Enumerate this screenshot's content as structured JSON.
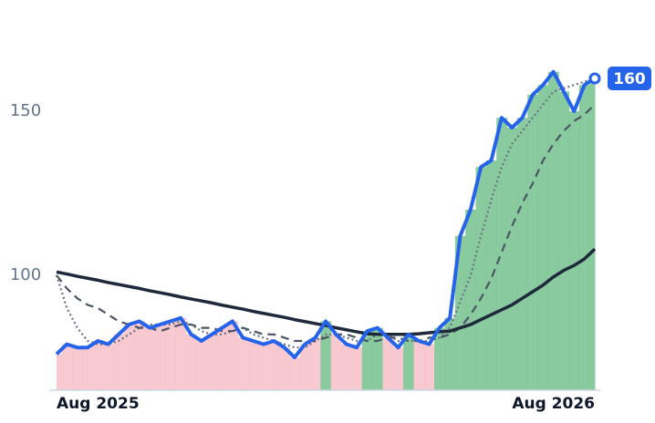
{
  "chart_data": {
    "type": "line",
    "categories": [
      "Aug 2025",
      null,
      null,
      null,
      null,
      null,
      null,
      null,
      null,
      null,
      null,
      null,
      null,
      null,
      null,
      null,
      null,
      null,
      null,
      null,
      null,
      null,
      null,
      null,
      null,
      null,
      null,
      null,
      null,
      null,
      null,
      null,
      null,
      null,
      null,
      null,
      null,
      null,
      null,
      null,
      null,
      null,
      null,
      null,
      null,
      null,
      null,
      null,
      null,
      null,
      null,
      null,
      "Aug 2026"
    ],
    "series": [
      {
        "color": "#2563eb",
        "values": [
          76,
          79,
          78,
          78,
          80,
          79,
          82,
          85,
          86,
          84,
          85,
          86,
          87,
          82,
          80,
          82,
          84,
          86,
          81,
          80,
          79,
          80,
          78,
          75,
          79,
          81,
          86,
          82,
          79,
          78,
          83,
          84,
          81,
          78,
          82,
          80,
          79,
          84,
          87,
          112,
          120,
          133,
          135,
          148,
          145,
          148,
          155,
          158,
          162,
          156,
          150,
          158,
          160
        ]
      },
      {
        "color": "#1e293b",
        "values": [
          101,
          100.4,
          99.7,
          99.1,
          98.5,
          97.8,
          97.2,
          96.6,
          96,
          95.3,
          94.7,
          94.1,
          93.4,
          92.8,
          92.2,
          91.6,
          90.9,
          90.3,
          89.7,
          89,
          88.4,
          87.8,
          87.2,
          86.5,
          85.9,
          85.3,
          84.7,
          84,
          83.4,
          82.8,
          82.2,
          82,
          82,
          82,
          82,
          82.2,
          82.5,
          82.8,
          83,
          84,
          85,
          86.5,
          88,
          89.5,
          91,
          93,
          95,
          97,
          99.5,
          101.5,
          103,
          105,
          108
        ]
      },
      {
        "color": "#4b5563",
        "dash": "9 6",
        "values": [
          100,
          96,
          93,
          91,
          90,
          88,
          86,
          85,
          84,
          84,
          83,
          84,
          85,
          85,
          84,
          84,
          83,
          83,
          84,
          83,
          82,
          82,
          81,
          80,
          80,
          80,
          81,
          82,
          82,
          81,
          80,
          80,
          81,
          81,
          80,
          80,
          81,
          81,
          82,
          84,
          88,
          93,
          99,
          107,
          115,
          122,
          128,
          135,
          140,
          144,
          147,
          149,
          152
        ]
      },
      {
        "color": "#6b7280",
        "dash": "2 3",
        "values": [
          100,
          90,
          84,
          80,
          79,
          79,
          80,
          82,
          84,
          85,
          85,
          85,
          86,
          85,
          83,
          82,
          82,
          83,
          84,
          82,
          81,
          80,
          79,
          78,
          78,
          80,
          82,
          82,
          81,
          80,
          80,
          82,
          82,
          80,
          80,
          80,
          80,
          81,
          84,
          92,
          100,
          112,
          123,
          133,
          140,
          144,
          148,
          152,
          156,
          157,
          158,
          159,
          160
        ]
      }
    ],
    "up_color": "#7cc595",
    "down_color": "#f8bfc9",
    "ylim": [
      65,
      180
    ],
    "yticks": [
      100,
      150
    ]
  }
}
